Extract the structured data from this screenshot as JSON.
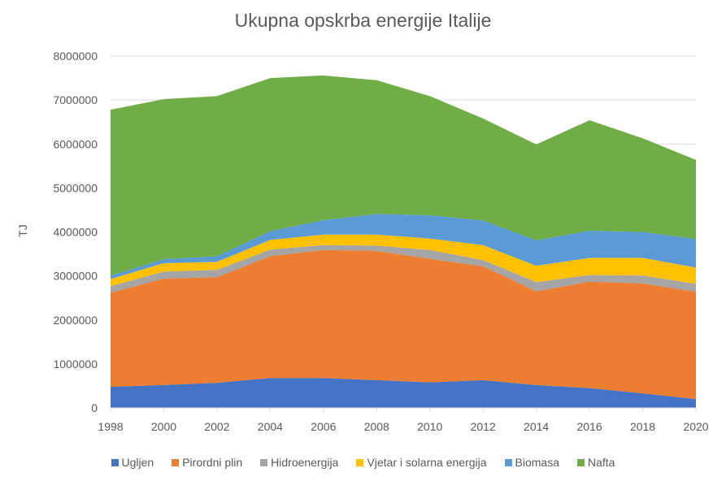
{
  "chart_data": {
    "type": "area",
    "stacked": true,
    "title": "Ukupna opskrba energije Italije",
    "xlabel": "",
    "ylabel": "TJ",
    "x": [
      1998,
      2000,
      2002,
      2004,
      2006,
      2008,
      2010,
      2012,
      2014,
      2016,
      2018,
      2020
    ],
    "x_tick_labels": [
      "1998",
      "2000",
      "2002",
      "2004",
      "2006",
      "2008",
      "2010",
      "2012",
      "2014",
      "2016",
      "2018",
      "2020"
    ],
    "ylim": [
      0,
      8000000
    ],
    "y_tick_labels": [
      "0",
      "1000000",
      "2000000",
      "3000000",
      "4000000",
      "5000000",
      "6000000",
      "7000000",
      "8000000"
    ],
    "grid": true,
    "legend_position": "bottom",
    "series": [
      {
        "name": "Ugljen",
        "color": "#4472C4",
        "values": [
          480000,
          520000,
          570000,
          680000,
          680000,
          630000,
          580000,
          630000,
          520000,
          450000,
          330000,
          200000
        ]
      },
      {
        "name": "Pirordni plin",
        "color": "#ED7D31",
        "values": [
          2140000,
          2420000,
          2400000,
          2770000,
          2910000,
          2940000,
          2810000,
          2590000,
          2130000,
          2420000,
          2500000,
          2440000
        ]
      },
      {
        "name": "Hidroenergija",
        "color": "#A5A5A5",
        "values": [
          150000,
          160000,
          170000,
          150000,
          110000,
          120000,
          200000,
          140000,
          210000,
          150000,
          180000,
          180000
        ]
      },
      {
        "name": "Vjetar i solarna energija",
        "color": "#FFC000",
        "values": [
          160000,
          190000,
          180000,
          220000,
          240000,
          250000,
          260000,
          340000,
          370000,
          390000,
          400000,
          370000
        ]
      },
      {
        "name": "Biomasa",
        "color": "#5B9BD5",
        "values": [
          80000,
          90000,
          130000,
          200000,
          330000,
          470000,
          530000,
          560000,
          580000,
          620000,
          590000,
          650000
        ]
      },
      {
        "name": "Nafta",
        "color": "#70AD47",
        "values": [
          3770000,
          3640000,
          3640000,
          3480000,
          3290000,
          3040000,
          2710000,
          2320000,
          2180000,
          2510000,
          2130000,
          1800000
        ]
      }
    ]
  }
}
